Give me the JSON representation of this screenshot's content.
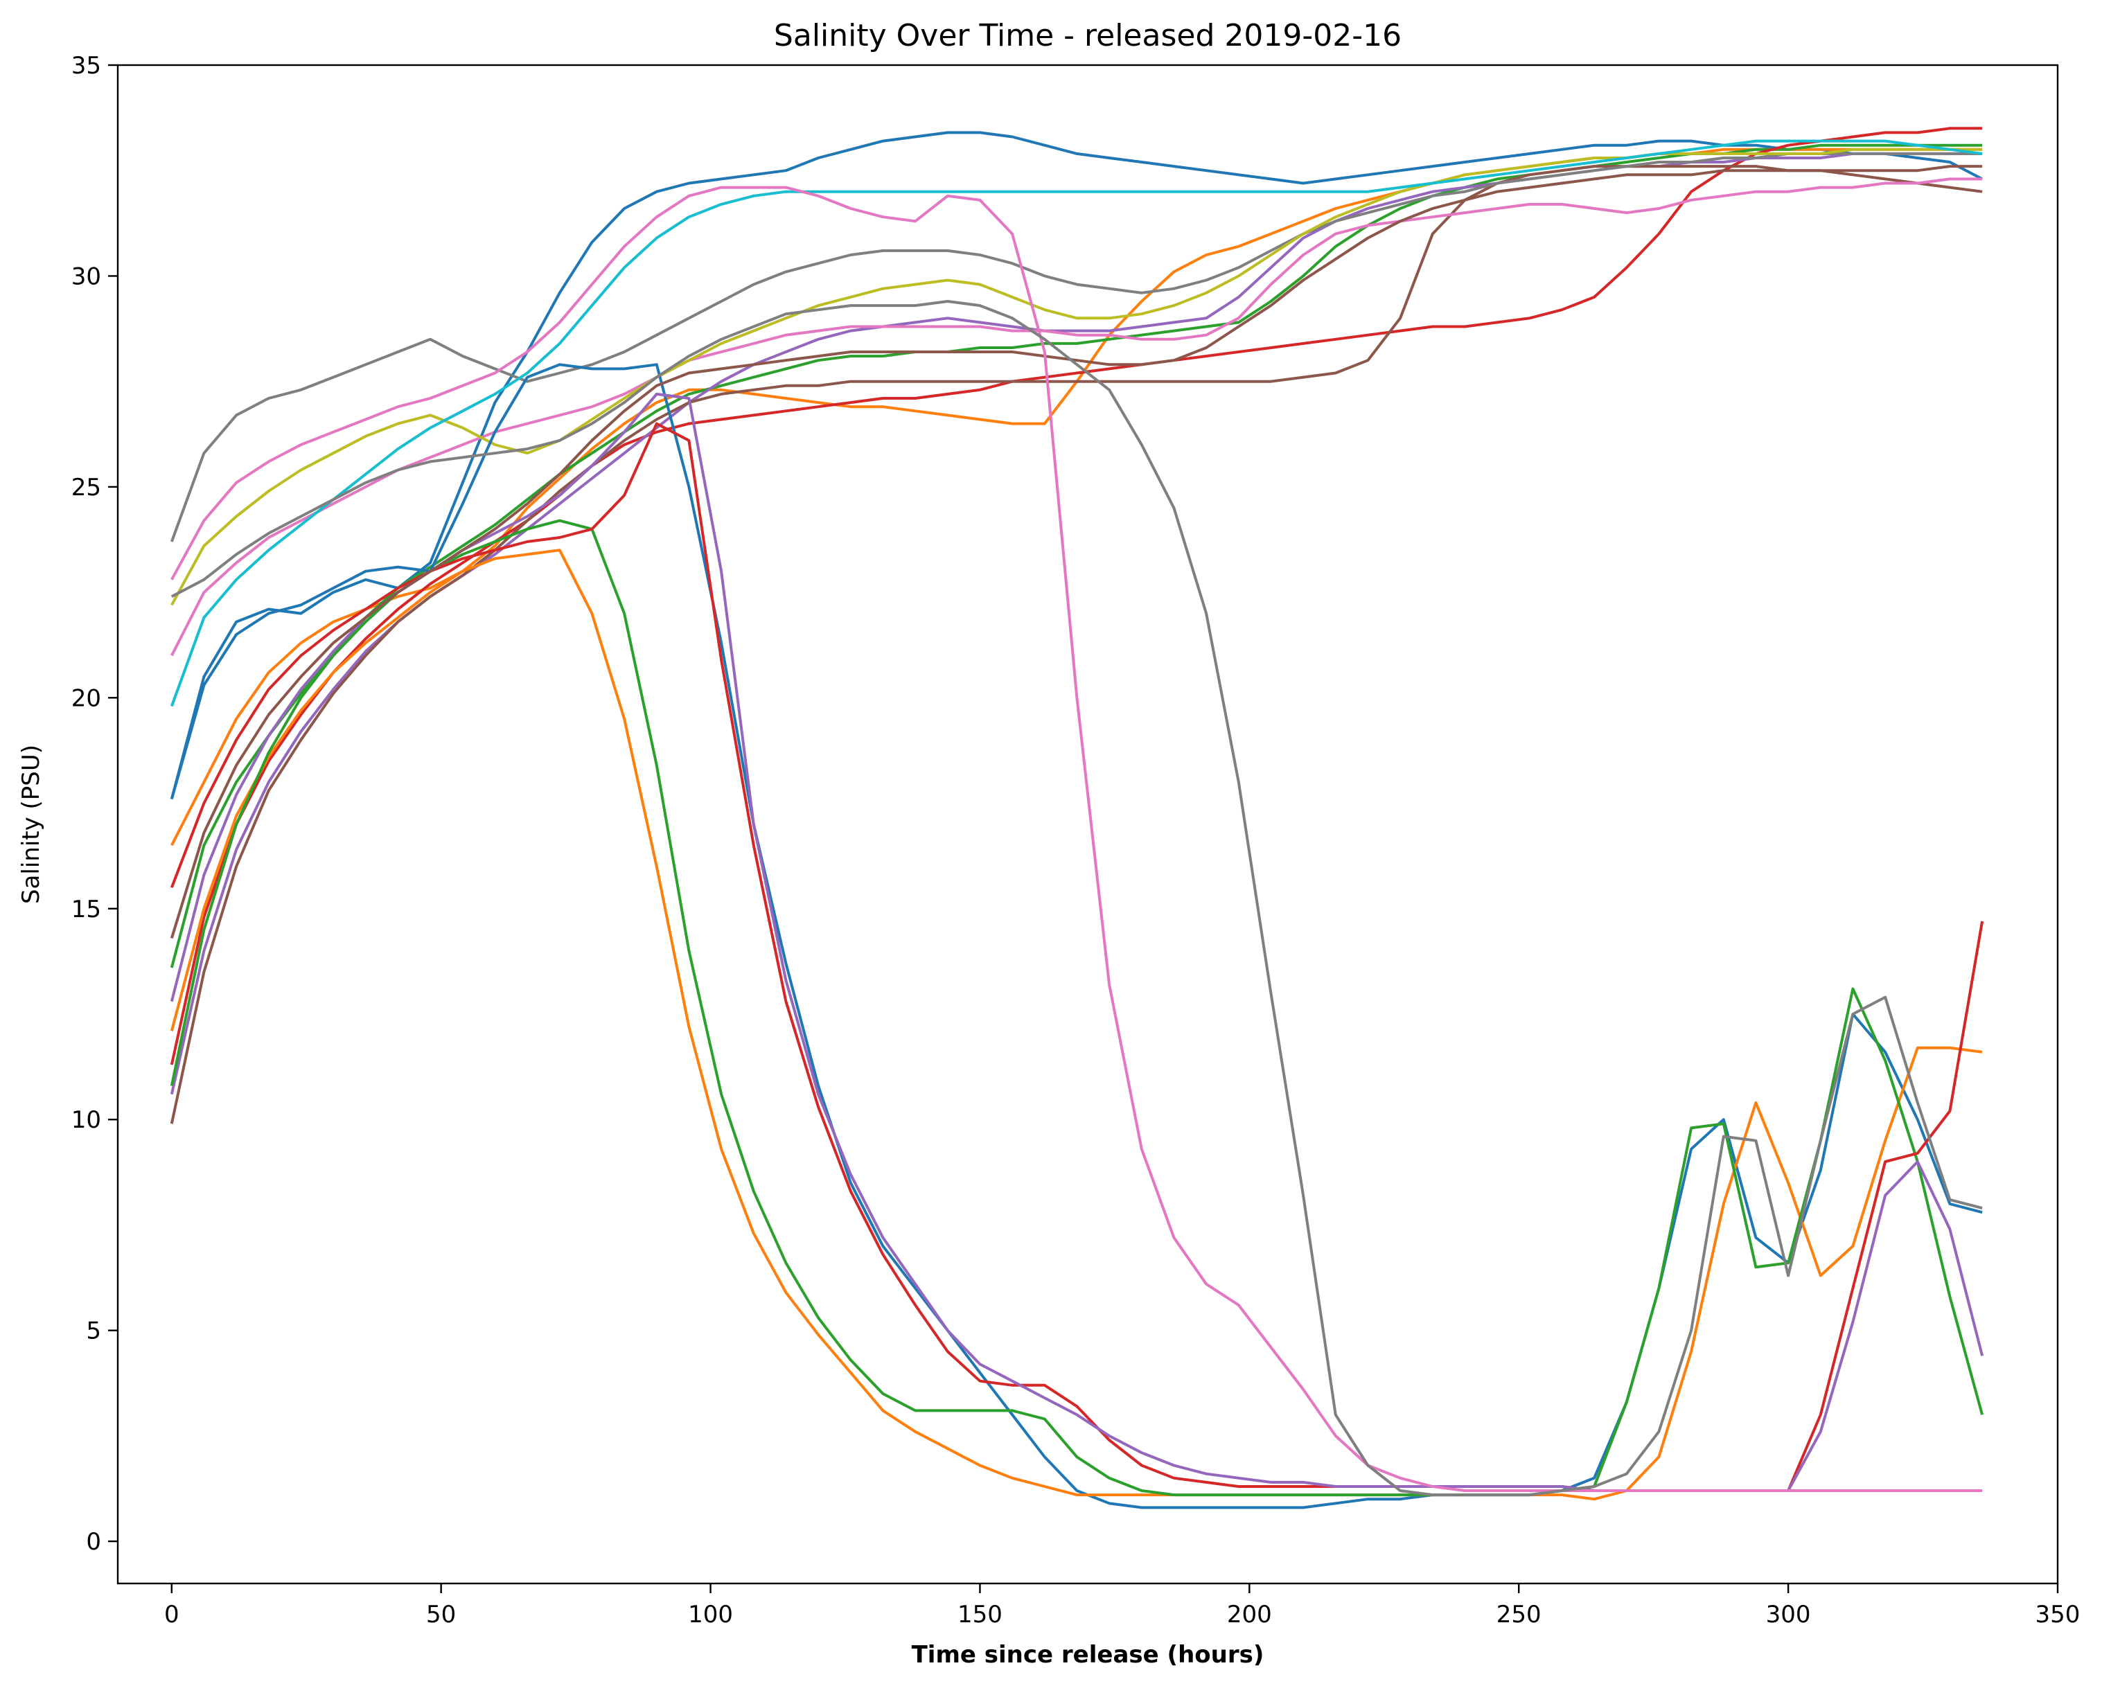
{
  "chart_data": {
    "type": "line",
    "title": "Salinity Over Time - released 2019-02-16",
    "xlabel": "Time since release (hours)",
    "ylabel": "Salinity (PSU)",
    "xlim": [
      -10,
      350
    ],
    "ylim": [
      -1,
      35
    ],
    "xticks": [
      0,
      50,
      100,
      150,
      200,
      250,
      300,
      350
    ],
    "yticks": [
      0,
      5,
      10,
      15,
      20,
      25,
      30,
      35
    ],
    "grid": false,
    "legend": "none",
    "palette": [
      "#1f77b4",
      "#ff7f0e",
      "#2ca02c",
      "#d62728",
      "#9467bd",
      "#8c564b",
      "#e377c2",
      "#7f7f7f",
      "#bcbd22",
      "#17becf"
    ],
    "x": [
      0,
      6,
      12,
      18,
      24,
      30,
      36,
      42,
      48,
      54,
      60,
      66,
      72,
      78,
      84,
      90,
      96,
      102,
      108,
      114,
      120,
      126,
      132,
      138,
      144,
      150,
      156,
      162,
      168,
      174,
      180,
      186,
      192,
      198,
      204,
      210,
      216,
      222,
      228,
      234,
      240,
      246,
      252,
      258,
      264,
      270,
      276,
      282,
      288,
      294,
      300,
      306,
      312,
      318,
      324,
      330,
      336
    ],
    "series": [
      {
        "values": [
          17.6,
          20.5,
          21.8,
          22.1,
          22.0,
          22.5,
          22.8,
          22.6,
          23.2,
          25.1,
          27.0,
          28.2,
          29.6,
          30.8,
          31.6,
          32.0,
          32.2,
          32.3,
          32.4,
          32.5,
          32.8,
          33.0,
          33.2,
          33.3,
          33.4,
          33.4,
          33.3,
          33.1,
          32.9,
          32.8,
          32.7,
          32.6,
          32.5,
          32.4,
          32.3,
          32.2,
          32.3,
          32.4,
          32.5,
          32.6,
          32.7,
          32.8,
          32.9,
          33.0,
          33.1,
          33.1,
          33.2,
          33.2,
          33.1,
          33.1,
          33.0,
          33.0,
          32.9,
          32.9,
          32.8,
          32.7,
          32.3
        ]
      },
      {
        "values": [
          16.5,
          18.0,
          19.5,
          20.6,
          21.3,
          21.8,
          22.1,
          22.4,
          22.6,
          23.0,
          23.6,
          24.5,
          25.2,
          25.9,
          26.5,
          27.0,
          27.3,
          27.3,
          27.2,
          27.1,
          27.0,
          26.9,
          26.9,
          26.8,
          26.7,
          26.6,
          26.5,
          26.5,
          27.5,
          28.6,
          29.4,
          30.1,
          30.5,
          30.7,
          31.0,
          31.3,
          31.6,
          31.8,
          32.0,
          32.2,
          32.4,
          32.5,
          32.6,
          32.7,
          32.8,
          32.8,
          32.9,
          32.9,
          33.0,
          33.0,
          33.0,
          33.0,
          33.0,
          33.0,
          33.0,
          33.0,
          33.0
        ]
      },
      {
        "values": [
          13.6,
          16.5,
          18.0,
          19.1,
          20.1,
          21.0,
          21.9,
          22.6,
          23.1,
          23.6,
          24.1,
          24.7,
          25.3,
          25.8,
          26.3,
          26.8,
          27.2,
          27.4,
          27.6,
          27.8,
          28.0,
          28.1,
          28.1,
          28.2,
          28.2,
          28.3,
          28.3,
          28.4,
          28.4,
          28.5,
          28.6,
          28.7,
          28.8,
          28.9,
          29.4,
          30.0,
          30.7,
          31.2,
          31.6,
          31.9,
          32.1,
          32.3,
          32.4,
          32.5,
          32.6,
          32.7,
          32.8,
          32.9,
          32.9,
          33.0,
          33.0,
          33.1,
          33.1,
          33.1,
          33.1,
          33.1,
          33.1
        ]
      },
      {
        "values": [
          11.3,
          14.8,
          17.0,
          18.5,
          19.6,
          20.6,
          21.4,
          22.1,
          22.7,
          23.2,
          23.7,
          24.2,
          24.8,
          25.5,
          26.0,
          26.3,
          26.5,
          26.6,
          26.7,
          26.8,
          26.9,
          27.0,
          27.1,
          27.1,
          27.2,
          27.3,
          27.5,
          27.6,
          27.7,
          27.8,
          27.9,
          28.0,
          28.1,
          28.2,
          28.3,
          28.4,
          28.5,
          28.6,
          28.7,
          28.8,
          28.8,
          28.9,
          29.0,
          29.2,
          29.5,
          30.2,
          31.0,
          32.0,
          32.5,
          32.9,
          33.1,
          33.2,
          33.3,
          33.4,
          33.4,
          33.5,
          33.5
        ]
      },
      {
        "values": [
          10.6,
          14.0,
          16.4,
          18.0,
          19.2,
          20.2,
          21.1,
          21.8,
          22.4,
          22.9,
          23.4,
          24.0,
          24.6,
          25.2,
          25.8,
          26.4,
          27.0,
          27.5,
          27.9,
          28.2,
          28.5,
          28.7,
          28.8,
          28.9,
          29.0,
          28.9,
          28.8,
          28.7,
          28.7,
          28.7,
          28.8,
          28.9,
          29.0,
          29.5,
          30.2,
          30.9,
          31.3,
          31.6,
          31.8,
          32.0,
          32.1,
          32.2,
          32.3,
          32.4,
          32.5,
          32.6,
          32.6,
          32.7,
          32.7,
          32.8,
          32.8,
          32.8,
          32.9,
          32.9,
          32.9,
          32.9,
          32.9
        ]
      },
      {
        "values": [
          9.9,
          13.5,
          16.0,
          17.8,
          19.0,
          20.1,
          21.0,
          21.8,
          22.4,
          22.9,
          23.5,
          24.2,
          24.9,
          25.5,
          26.1,
          26.6,
          27.0,
          27.2,
          27.3,
          27.4,
          27.4,
          27.5,
          27.5,
          27.5,
          27.5,
          27.5,
          27.5,
          27.5,
          27.5,
          27.5,
          27.5,
          27.5,
          27.5,
          27.5,
          27.5,
          27.6,
          27.7,
          28.0,
          29.0,
          31.0,
          31.8,
          32.2,
          32.4,
          32.5,
          32.6,
          32.6,
          32.6,
          32.6,
          32.6,
          32.6,
          32.5,
          32.5,
          32.4,
          32.3,
          32.2,
          32.1,
          32.0
        ]
      },
      {
        "values": [
          21.0,
          22.5,
          23.2,
          23.8,
          24.2,
          24.6,
          25.0,
          25.4,
          25.7,
          26.0,
          26.3,
          26.5,
          26.7,
          26.9,
          27.2,
          27.6,
          28.0,
          28.2,
          28.4,
          28.6,
          28.7,
          28.8,
          28.8,
          28.8,
          28.8,
          28.8,
          28.7,
          28.7,
          28.6,
          28.6,
          28.5,
          28.5,
          28.6,
          29.0,
          29.8,
          30.5,
          31.0,
          31.2,
          31.3,
          31.4,
          31.5,
          31.6,
          31.7,
          31.7,
          31.6,
          31.5,
          31.6,
          31.8,
          31.9,
          32.0,
          32.0,
          32.1,
          32.1,
          32.2,
          32.2,
          32.3,
          32.3
        ]
      },
      {
        "values": [
          23.7,
          25.8,
          26.7,
          27.1,
          27.3,
          27.6,
          27.9,
          28.2,
          28.5,
          28.1,
          27.8,
          27.5,
          27.7,
          27.9,
          28.2,
          28.6,
          29.0,
          29.4,
          29.8,
          30.1,
          30.3,
          30.5,
          30.6,
          30.6,
          30.6,
          30.5,
          30.3,
          30.0,
          29.8,
          29.7,
          29.6,
          29.7,
          29.9,
          30.2,
          30.6,
          31.0,
          31.3,
          31.5,
          31.7,
          31.9,
          32.0,
          32.2,
          32.3,
          32.4,
          32.5,
          32.6,
          32.7,
          32.7,
          32.8,
          32.8,
          32.9,
          32.9,
          32.9,
          32.9,
          32.9,
          32.9,
          32.9
        ]
      },
      {
        "values": [
          22.2,
          23.6,
          24.3,
          24.9,
          25.4,
          25.8,
          26.2,
          26.5,
          26.7,
          26.4,
          26.0,
          25.8,
          26.1,
          26.6,
          27.1,
          27.6,
          28.0,
          28.4,
          28.7,
          29.0,
          29.3,
          29.5,
          29.7,
          29.8,
          29.9,
          29.8,
          29.5,
          29.2,
          29.0,
          29.0,
          29.1,
          29.3,
          29.6,
          30.0,
          30.5,
          31.0,
          31.4,
          31.7,
          32.0,
          32.2,
          32.4,
          32.5,
          32.6,
          32.7,
          32.8,
          32.8,
          32.9,
          32.9,
          32.9,
          32.9,
          32.9,
          32.9,
          33.0,
          33.0,
          33.0,
          33.0,
          33.0
        ]
      },
      {
        "values": [
          19.8,
          21.9,
          22.8,
          23.5,
          24.1,
          24.7,
          25.3,
          25.9,
          26.4,
          26.8,
          27.2,
          27.7,
          28.4,
          29.3,
          30.2,
          30.9,
          31.4,
          31.7,
          31.9,
          32.0,
          32.0,
          32.0,
          32.0,
          32.0,
          32.0,
          32.0,
          32.0,
          32.0,
          32.0,
          32.0,
          32.0,
          32.0,
          32.0,
          32.0,
          32.0,
          32.0,
          32.0,
          32.0,
          32.1,
          32.2,
          32.3,
          32.4,
          32.5,
          32.6,
          32.7,
          32.8,
          32.9,
          33.0,
          33.1,
          33.2,
          33.2,
          33.2,
          33.2,
          33.2,
          33.1,
          33.0,
          32.9
        ]
      },
      {
        "values": [
          17.6,
          20.3,
          21.5,
          22.0,
          22.2,
          22.6,
          23.0,
          23.1,
          23.0,
          24.6,
          26.3,
          27.6,
          27.9,
          27.8,
          27.8,
          27.9,
          25.0,
          21.3,
          17.0,
          13.7,
          10.8,
          8.5,
          7.0,
          6.0,
          5.0,
          4.0,
          3.0,
          2.0,
          1.2,
          0.9,
          0.8,
          0.8,
          0.8,
          0.8,
          0.8,
          0.8,
          0.9,
          1.0,
          1.0,
          1.1,
          1.1,
          1.1,
          1.1,
          1.2,
          1.5,
          3.3,
          6.0,
          9.3,
          10.0,
          7.2,
          6.6,
          8.8,
          12.5,
          11.6,
          10.0,
          8.0,
          7.8
        ]
      },
      {
        "values": [
          12.1,
          15.0,
          17.2,
          18.6,
          19.7,
          20.6,
          21.3,
          21.9,
          22.5,
          23.0,
          23.3,
          23.4,
          23.5,
          22.0,
          19.5,
          16.0,
          12.2,
          9.3,
          7.3,
          5.9,
          4.9,
          4.0,
          3.1,
          2.6,
          2.2,
          1.8,
          1.5,
          1.3,
          1.1,
          1.1,
          1.1,
          1.1,
          1.1,
          1.1,
          1.1,
          1.1,
          1.1,
          1.1,
          1.1,
          1.1,
          1.1,
          1.1,
          1.1,
          1.1,
          1.0,
          1.2,
          2.0,
          4.5,
          8.0,
          10.4,
          8.5,
          6.3,
          7.0,
          9.5,
          11.7,
          11.7,
          11.6
        ]
      },
      {
        "values": [
          10.8,
          14.5,
          17.0,
          18.7,
          20.0,
          21.0,
          21.8,
          22.5,
          23.0,
          23.4,
          23.7,
          24.0,
          24.2,
          24.0,
          22.0,
          18.4,
          14.0,
          10.6,
          8.3,
          6.6,
          5.3,
          4.3,
          3.5,
          3.1,
          3.1,
          3.1,
          3.1,
          2.9,
          2.0,
          1.5,
          1.2,
          1.1,
          1.1,
          1.1,
          1.1,
          1.1,
          1.1,
          1.1,
          1.1,
          1.1,
          1.1,
          1.1,
          1.1,
          1.2,
          1.3,
          3.3,
          6.0,
          9.8,
          9.9,
          6.5,
          6.6,
          9.5,
          13.1,
          11.4,
          9.0,
          5.8,
          3.0
        ]
      },
      {
        "values": [
          15.5,
          17.5,
          19.0,
          20.2,
          21.0,
          21.6,
          22.1,
          22.6,
          23.0,
          23.3,
          23.5,
          23.7,
          23.8,
          24.0,
          24.8,
          26.5,
          26.1,
          20.9,
          16.5,
          12.8,
          10.3,
          8.3,
          6.8,
          5.6,
          4.5,
          3.8,
          3.7,
          3.7,
          3.2,
          2.4,
          1.8,
          1.5,
          1.4,
          1.3,
          1.3,
          1.3,
          1.3,
          1.3,
          1.3,
          1.3,
          1.3,
          1.3,
          1.3,
          1.3,
          1.2,
          1.2,
          1.2,
          1.2,
          1.2,
          1.2,
          1.2,
          3.0,
          6.0,
          9.0,
          9.2,
          10.2,
          14.7
        ]
      },
      {
        "values": [
          12.8,
          15.8,
          17.7,
          19.1,
          20.2,
          21.1,
          21.9,
          22.5,
          23.0,
          23.5,
          23.9,
          24.3,
          24.8,
          25.5,
          26.3,
          27.2,
          27.1,
          23.0,
          17.0,
          13.3,
          10.6,
          8.7,
          7.2,
          6.1,
          5.0,
          4.2,
          3.8,
          3.4,
          3.0,
          2.5,
          2.1,
          1.8,
          1.6,
          1.5,
          1.4,
          1.4,
          1.3,
          1.3,
          1.3,
          1.3,
          1.3,
          1.3,
          1.3,
          1.3,
          1.2,
          1.2,
          1.2,
          1.2,
          1.2,
          1.2,
          1.2,
          2.6,
          5.2,
          8.2,
          9.0,
          7.4,
          4.4
        ]
      },
      {
        "values": [
          14.3,
          16.8,
          18.4,
          19.6,
          20.5,
          21.3,
          21.9,
          22.5,
          23.0,
          23.5,
          24.0,
          24.6,
          25.3,
          26.1,
          26.8,
          27.4,
          27.7,
          27.8,
          27.9,
          28.0,
          28.1,
          28.2,
          28.2,
          28.2,
          28.2,
          28.2,
          28.2,
          28.1,
          28.0,
          27.9,
          27.9,
          28.0,
          28.3,
          28.8,
          29.3,
          29.9,
          30.4,
          30.9,
          31.3,
          31.6,
          31.8,
          32.0,
          32.1,
          32.2,
          32.3,
          32.4,
          32.4,
          32.4,
          32.5,
          32.5,
          32.5,
          32.5,
          32.5,
          32.5,
          32.5,
          32.6,
          32.6
        ]
      },
      {
        "values": [
          22.8,
          24.2,
          25.1,
          25.6,
          26.0,
          26.3,
          26.6,
          26.9,
          27.1,
          27.4,
          27.7,
          28.2,
          28.9,
          29.8,
          30.7,
          31.4,
          31.9,
          32.1,
          32.1,
          32.1,
          31.9,
          31.6,
          31.4,
          31.3,
          31.9,
          31.8,
          31.0,
          28.2,
          20.0,
          13.2,
          9.3,
          7.2,
          6.1,
          5.6,
          4.6,
          3.6,
          2.5,
          1.8,
          1.5,
          1.3,
          1.2,
          1.2,
          1.2,
          1.2,
          1.2,
          1.2,
          1.2,
          1.2,
          1.2,
          1.2,
          1.2,
          1.2,
          1.2,
          1.2,
          1.2,
          1.2,
          1.2
        ]
      },
      {
        "values": [
          22.4,
          22.8,
          23.4,
          23.9,
          24.3,
          24.7,
          25.1,
          25.4,
          25.6,
          25.7,
          25.8,
          25.9,
          26.1,
          26.5,
          27.0,
          27.6,
          28.1,
          28.5,
          28.8,
          29.1,
          29.2,
          29.3,
          29.3,
          29.3,
          29.4,
          29.3,
          29.0,
          28.5,
          27.9,
          27.3,
          26.0,
          24.5,
          22.0,
          18.0,
          13.0,
          8.2,
          3.0,
          1.8,
          1.2,
          1.1,
          1.1,
          1.1,
          1.1,
          1.2,
          1.3,
          1.6,
          2.6,
          5.0,
          9.6,
          9.5,
          6.3,
          9.5,
          12.5,
          12.9,
          10.4,
          8.1,
          7.9
        ]
      }
    ]
  }
}
